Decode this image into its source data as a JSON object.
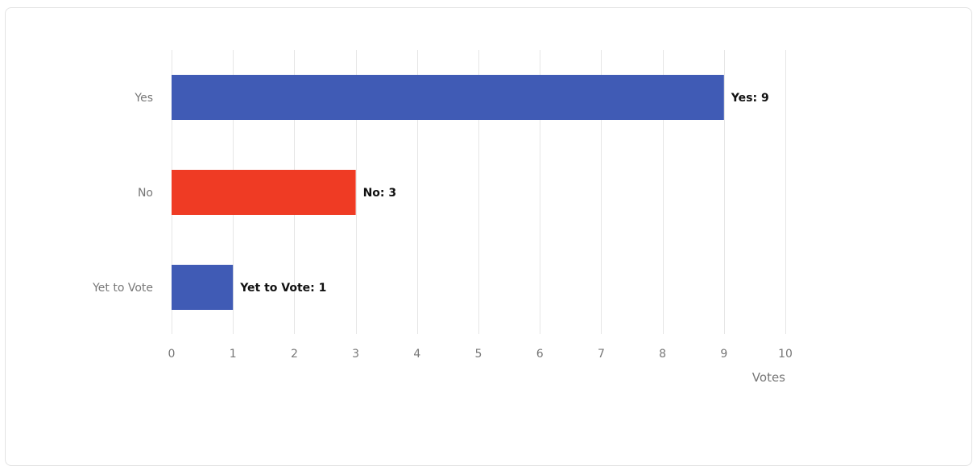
{
  "chart_data": {
    "type": "bar",
    "orientation": "horizontal",
    "categories": [
      "Yes",
      "No",
      "Yet to Vote"
    ],
    "values": [
      9,
      3,
      1
    ],
    "data_labels": [
      "Yes: 9",
      "No: 3",
      "Yet to Vote: 1"
    ],
    "colors": [
      "#405bb5",
      "#ef3b24",
      "#405bb5"
    ],
    "xlabel": "Votes",
    "xlim": [
      0,
      10
    ],
    "xticks": [
      0,
      1,
      2,
      3,
      4,
      5,
      6,
      7,
      8,
      9,
      10
    ],
    "grid": true,
    "legend": "none"
  }
}
